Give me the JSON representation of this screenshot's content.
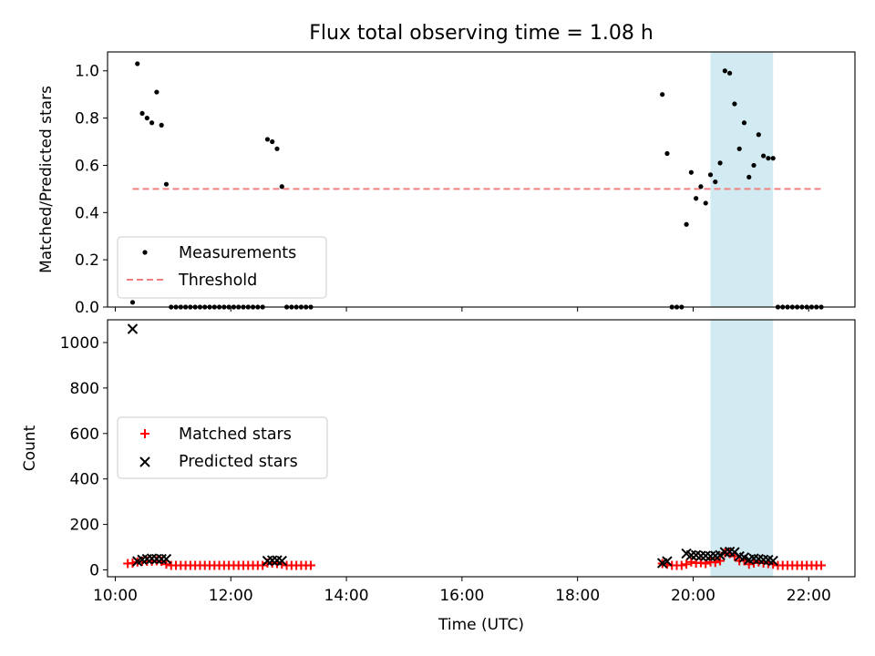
{
  "chart_data": [
    {
      "type": "scatter",
      "title": "Flux total observing time = 1.08 h",
      "xlabel": "",
      "ylabel": "Matched/Predicted stars",
      "xlim": [
        "09:52",
        "22:48"
      ],
      "ylim": [
        0,
        1.08
      ],
      "yticks": [
        "0.0",
        "0.2",
        "0.4",
        "0.6",
        "0.8",
        "1.0"
      ],
      "grid": false,
      "legend": "lower-left",
      "highlight_span": [
        "20:18",
        "21:23"
      ],
      "highlight_color": "#add8e6",
      "series": [
        {
          "name": "Measurements",
          "color": "#000000",
          "marker": "dot",
          "points": [
            [
              "10:18",
              0.02
            ],
            [
              "10:23",
              1.03
            ],
            [
              "10:28",
              0.82
            ],
            [
              "10:33",
              0.8
            ],
            [
              "10:38",
              0.78
            ],
            [
              "10:43",
              0.91
            ],
            [
              "10:48",
              0.77
            ],
            [
              "10:53",
              0.52
            ],
            [
              "10:58",
              0
            ],
            [
              "11:03",
              0
            ],
            [
              "11:08",
              0
            ],
            [
              "11:13",
              0
            ],
            [
              "11:18",
              0
            ],
            [
              "11:23",
              0
            ],
            [
              "11:28",
              0
            ],
            [
              "11:33",
              0
            ],
            [
              "11:38",
              0
            ],
            [
              "11:43",
              0
            ],
            [
              "11:48",
              0
            ],
            [
              "11:53",
              0
            ],
            [
              "11:58",
              0
            ],
            [
              "12:03",
              0
            ],
            [
              "12:08",
              0
            ],
            [
              "12:13",
              0
            ],
            [
              "12:18",
              0
            ],
            [
              "12:23",
              0
            ],
            [
              "12:28",
              0
            ],
            [
              "12:33",
              0
            ],
            [
              "12:38",
              0.71
            ],
            [
              "12:43",
              0.7
            ],
            [
              "12:48",
              0.67
            ],
            [
              "12:53",
              0.51
            ],
            [
              "12:58",
              0
            ],
            [
              "13:03",
              0
            ],
            [
              "13:08",
              0
            ],
            [
              "13:13",
              0
            ],
            [
              "13:18",
              0
            ],
            [
              "13:23",
              0
            ],
            [
              "19:28",
              0.9
            ],
            [
              "19:33",
              0.65
            ],
            [
              "19:38",
              0
            ],
            [
              "19:43",
              0
            ],
            [
              "19:48",
              0
            ],
            [
              "19:53",
              0.35
            ],
            [
              "19:58",
              0.57
            ],
            [
              "20:03",
              0.46
            ],
            [
              "20:08",
              0.51
            ],
            [
              "20:13",
              0.44
            ],
            [
              "20:18",
              0.56
            ],
            [
              "20:23",
              0.53
            ],
            [
              "20:28",
              0.61
            ],
            [
              "20:33",
              1.0
            ],
            [
              "20:38",
              0.99
            ],
            [
              "20:43",
              0.86
            ],
            [
              "20:48",
              0.67
            ],
            [
              "20:53",
              0.78
            ],
            [
              "20:58",
              0.55
            ],
            [
              "21:03",
              0.6
            ],
            [
              "21:08",
              0.73
            ],
            [
              "21:13",
              0.64
            ],
            [
              "21:18",
              0.63
            ],
            [
              "21:23",
              0.63
            ],
            [
              "21:28",
              0
            ],
            [
              "21:33",
              0
            ],
            [
              "21:38",
              0
            ],
            [
              "21:43",
              0
            ],
            [
              "21:48",
              0
            ],
            [
              "21:53",
              0
            ],
            [
              "21:58",
              0
            ],
            [
              "22:03",
              0
            ],
            [
              "22:08",
              0
            ],
            [
              "22:13",
              0
            ]
          ]
        },
        {
          "name": "Threshold",
          "color": "#f08080",
          "marker": "dashed-line",
          "points": [
            [
              "10:18",
              0.5
            ],
            [
              "22:13",
              0.5
            ]
          ]
        }
      ]
    },
    {
      "type": "scatter",
      "title": "",
      "xlabel": "Time (UTC)",
      "ylabel": "Count",
      "xlim": [
        "09:52",
        "22:48"
      ],
      "ylim": [
        -30,
        1100
      ],
      "yticks": [
        "0",
        "200",
        "400",
        "600",
        "800",
        "1000"
      ],
      "xticks": [
        "10:00",
        "12:00",
        "14:00",
        "16:00",
        "18:00",
        "20:00",
        "22:00"
      ],
      "grid": false,
      "legend": "center-left",
      "highlight_span": [
        "20:18",
        "21:23"
      ],
      "highlight_color": "#add8e6",
      "series": [
        {
          "name": "Matched stars",
          "color": "#ff0000",
          "marker": "plus",
          "points": [
            [
              "10:13",
              28
            ],
            [
              "10:18",
              30
            ],
            [
              "10:23",
              35
            ],
            [
              "10:28",
              38
            ],
            [
              "10:33",
              38
            ],
            [
              "10:38",
              38
            ],
            [
              "10:43",
              40
            ],
            [
              "10:48",
              38
            ],
            [
              "10:53",
              25
            ],
            [
              "10:58",
              20
            ],
            [
              "11:03",
              20
            ],
            [
              "11:08",
              20
            ],
            [
              "11:13",
              20
            ],
            [
              "11:18",
              20
            ],
            [
              "11:23",
              20
            ],
            [
              "11:28",
              20
            ],
            [
              "11:33",
              20
            ],
            [
              "11:38",
              20
            ],
            [
              "11:43",
              20
            ],
            [
              "11:48",
              20
            ],
            [
              "11:53",
              20
            ],
            [
              "11:58",
              20
            ],
            [
              "12:03",
              20
            ],
            [
              "12:08",
              20
            ],
            [
              "12:13",
              20
            ],
            [
              "12:18",
              20
            ],
            [
              "12:23",
              20
            ],
            [
              "12:28",
              20
            ],
            [
              "12:33",
              20
            ],
            [
              "12:38",
              30
            ],
            [
              "12:43",
              30
            ],
            [
              "12:48",
              28
            ],
            [
              "12:53",
              25
            ],
            [
              "12:58",
              20
            ],
            [
              "13:03",
              20
            ],
            [
              "13:08",
              20
            ],
            [
              "13:13",
              20
            ],
            [
              "13:18",
              20
            ],
            [
              "13:23",
              20
            ],
            [
              "19:28",
              28
            ],
            [
              "19:33",
              25
            ],
            [
              "19:38",
              20
            ],
            [
              "19:43",
              20
            ],
            [
              "19:48",
              20
            ],
            [
              "19:53",
              25
            ],
            [
              "19:58",
              35
            ],
            [
              "20:03",
              30
            ],
            [
              "20:08",
              32
            ],
            [
              "20:13",
              28
            ],
            [
              "20:18",
              35
            ],
            [
              "20:23",
              33
            ],
            [
              "20:28",
              40
            ],
            [
              "20:33",
              75
            ],
            [
              "20:38",
              72
            ],
            [
              "20:43",
              60
            ],
            [
              "20:48",
              40
            ],
            [
              "20:53",
              40
            ],
            [
              "20:58",
              25
            ],
            [
              "21:03",
              30
            ],
            [
              "21:08",
              35
            ],
            [
              "21:13",
              30
            ],
            [
              "21:18",
              28
            ],
            [
              "21:23",
              25
            ],
            [
              "21:28",
              20
            ],
            [
              "21:33",
              20
            ],
            [
              "21:38",
              20
            ],
            [
              "21:43",
              20
            ],
            [
              "21:48",
              20
            ],
            [
              "21:53",
              20
            ],
            [
              "21:58",
              20
            ],
            [
              "22:03",
              20
            ],
            [
              "22:08",
              20
            ],
            [
              "22:13",
              20
            ]
          ]
        },
        {
          "name": "Predicted stars",
          "color": "#000000",
          "marker": "x",
          "points": [
            [
              "10:18",
              1060
            ],
            [
              "10:23",
              38
            ],
            [
              "10:28",
              45
            ],
            [
              "10:33",
              48
            ],
            [
              "10:38",
              50
            ],
            [
              "10:43",
              48
            ],
            [
              "10:48",
              48
            ],
            [
              "10:53",
              48
            ],
            [
              "12:38",
              40
            ],
            [
              "12:43",
              42
            ],
            [
              "12:48",
              42
            ],
            [
              "12:53",
              40
            ],
            [
              "19:28",
              30
            ],
            [
              "19:33",
              38
            ],
            [
              "19:53",
              72
            ],
            [
              "19:58",
              65
            ],
            [
              "20:03",
              65
            ],
            [
              "20:08",
              62
            ],
            [
              "20:13",
              62
            ],
            [
              "20:18",
              60
            ],
            [
              "20:23",
              62
            ],
            [
              "20:28",
              65
            ],
            [
              "20:33",
              78
            ],
            [
              "20:38",
              80
            ],
            [
              "20:43",
              78
            ],
            [
              "20:48",
              60
            ],
            [
              "20:53",
              55
            ],
            [
              "20:58",
              45
            ],
            [
              "21:03",
              50
            ],
            [
              "21:08",
              48
            ],
            [
              "21:13",
              45
            ],
            [
              "21:18",
              44
            ],
            [
              "21:23",
              40
            ]
          ]
        }
      ]
    }
  ]
}
